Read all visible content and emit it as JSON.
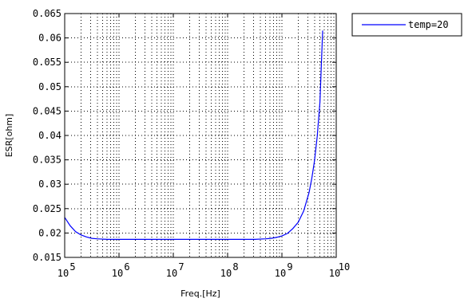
{
  "chart_data": {
    "type": "line",
    "xlabel": "Freq.[Hz]",
    "ylabel": "ESR[ohm]",
    "xscale": "log",
    "xlim": [
      100000,
      10000000000
    ],
    "ylim": [
      0.015,
      0.065
    ],
    "grid": true,
    "legend_position": "outside-top-right",
    "x_ticks": [
      {
        "base": "10",
        "exp": "5",
        "value": 100000
      },
      {
        "base": "10",
        "exp": "6",
        "value": 1000000
      },
      {
        "base": "10",
        "exp": "7",
        "value": 10000000
      },
      {
        "base": "10",
        "exp": "8",
        "value": 100000000
      },
      {
        "base": "10",
        "exp": "9",
        "value": 1000000000
      },
      {
        "base": "10",
        "exp": "10",
        "value": 10000000000
      }
    ],
    "y_ticks": [
      {
        "label": "0.015",
        "value": 0.015
      },
      {
        "label": "0.02",
        "value": 0.02
      },
      {
        "label": "0.025",
        "value": 0.025
      },
      {
        "label": "0.03",
        "value": 0.03
      },
      {
        "label": "0.035",
        "value": 0.035
      },
      {
        "label": "0.04",
        "value": 0.04
      },
      {
        "label": "0.045",
        "value": 0.045
      },
      {
        "label": "0.05",
        "value": 0.05
      },
      {
        "label": "0.055",
        "value": 0.055
      },
      {
        "label": "0.06",
        "value": 0.06
      },
      {
        "label": "0.065",
        "value": 0.065
      }
    ],
    "series": [
      {
        "name": "temp=20",
        "color": "#0000ff",
        "x": [
          100000,
          125893,
          158489,
          199526,
          251189,
          316228,
          398107,
          501187,
          630957,
          794328,
          1000000,
          10000000,
          100000000,
          316228000,
          501187000,
          630957000,
          794328000,
          1000000000,
          1258930000,
          1584890000,
          1995260000,
          2511890000,
          3162280000,
          3548130000,
          3981070000,
          4466840000,
          5011870000,
          5623410000
        ],
        "y": [
          0.0232,
          0.0215,
          0.0203,
          0.0196,
          0.0192,
          0.0189,
          0.0188,
          0.01875,
          0.0187,
          0.0187,
          0.0187,
          0.0187,
          0.0187,
          0.0187,
          0.0188,
          0.0189,
          0.0191,
          0.0194,
          0.0199,
          0.0209,
          0.0222,
          0.0245,
          0.0283,
          0.0312,
          0.0348,
          0.0398,
          0.0468,
          0.0615
        ]
      }
    ]
  }
}
